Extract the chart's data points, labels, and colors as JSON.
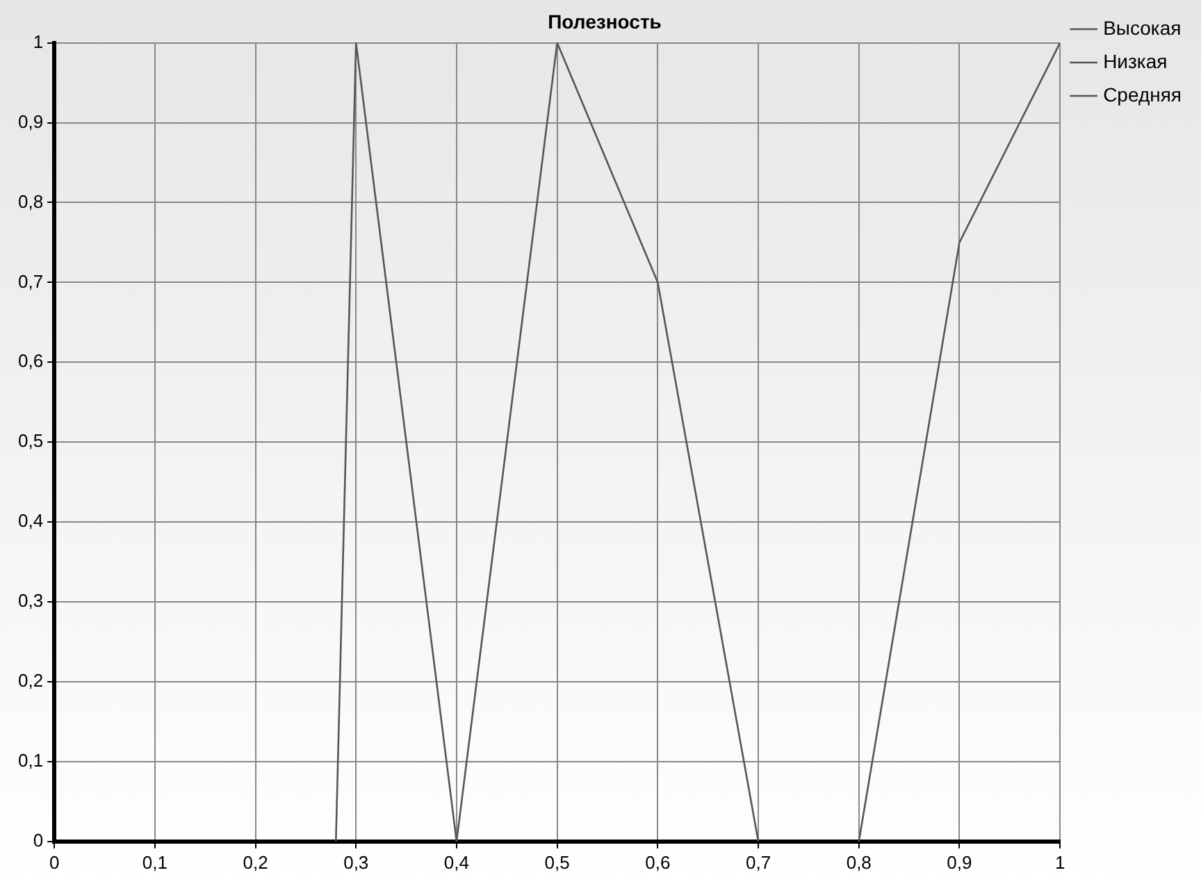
{
  "chart_data": {
    "type": "line",
    "title": "Полезность",
    "xlim": [
      0,
      1
    ],
    "ylim": [
      0,
      1
    ],
    "xticks": [
      0,
      {
        "value": 0.1,
        "label": "0,1"
      },
      {
        "value": 0.2,
        "label": "0,2"
      },
      {
        "value": 0.3,
        "label": "0,3"
      },
      {
        "value": 0.4,
        "label": "0,4"
      },
      {
        "value": 0.5,
        "label": "0,5"
      },
      {
        "value": 0.6,
        "label": "0,6"
      },
      {
        "value": 0.7,
        "label": "0,7"
      },
      {
        "value": 0.8,
        "label": "0,8"
      },
      {
        "value": 0.9,
        "label": "0,9"
      },
      1
    ],
    "yticks": [
      0,
      {
        "value": 0.1,
        "label": "0,1"
      },
      {
        "value": 0.2,
        "label": "0,2"
      },
      {
        "value": 0.3,
        "label": "0,3"
      },
      {
        "value": 0.4,
        "label": "0,4"
      },
      {
        "value": 0.5,
        "label": "0,5"
      },
      {
        "value": 0.6,
        "label": "0,6"
      },
      {
        "value": 0.7,
        "label": "0,7"
      },
      {
        "value": 0.8,
        "label": "0,8"
      },
      {
        "value": 0.9,
        "label": "0,9"
      },
      1
    ],
    "grid": true,
    "legend": "top right",
    "marker": "none",
    "line_style": "solid",
    "series": [
      {
        "name": "Высокая",
        "color": "#555555",
        "x": [
          0.8,
          0.9,
          1
        ],
        "values": [
          0,
          0.75,
          1
        ]
      },
      {
        "name": "Низкая",
        "color": "#555555",
        "x": [
          0.28,
          0.3,
          0.4
        ],
        "values": [
          0,
          1,
          0
        ]
      },
      {
        "name": "Средняя",
        "color": "#555555",
        "x": [
          0.4,
          0.5,
          0.6,
          0.7
        ],
        "values": [
          0,
          1,
          0.7,
          0
        ]
      }
    ]
  }
}
